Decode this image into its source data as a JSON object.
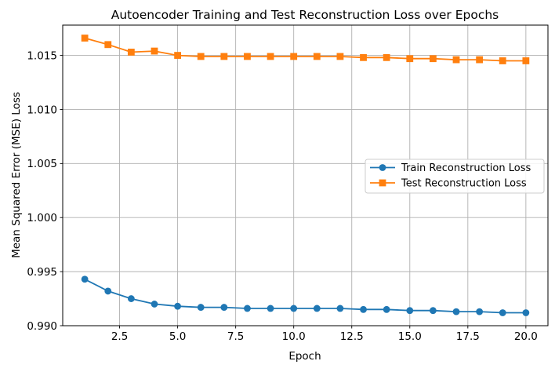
{
  "chart_data": {
    "type": "line",
    "title": "Autoencoder Training and Test Reconstruction Loss over Epochs",
    "xlabel": "Epoch",
    "ylabel": "Mean Squared Error (MSE) Loss",
    "x": [
      1,
      2,
      3,
      4,
      5,
      6,
      7,
      8,
      9,
      10,
      11,
      12,
      13,
      14,
      15,
      16,
      17,
      18,
      19,
      20
    ],
    "series": [
      {
        "name": "Train Reconstruction Loss",
        "color": "#1f77b4",
        "marker": "circle",
        "values": [
          0.9943,
          0.9932,
          0.9925,
          0.992,
          0.9918,
          0.9917,
          0.9917,
          0.9916,
          0.9916,
          0.9916,
          0.9916,
          0.9916,
          0.9915,
          0.9915,
          0.9914,
          0.9914,
          0.9913,
          0.9913,
          0.9912,
          0.9912
        ]
      },
      {
        "name": "Test Reconstruction Loss",
        "color": "#ff7f0e",
        "marker": "square",
        "values": [
          1.0166,
          1.016,
          1.0153,
          1.0154,
          1.015,
          1.0149,
          1.0149,
          1.0149,
          1.0149,
          1.0149,
          1.0149,
          1.0149,
          1.0148,
          1.0148,
          1.0147,
          1.0147,
          1.0146,
          1.0146,
          1.0145,
          1.0145
        ]
      }
    ],
    "xlim": [
      0.05,
      20.95
    ],
    "ylim": [
      0.99,
      1.0178
    ],
    "xticks": {
      "values": [
        2.5,
        5.0,
        7.5,
        10.0,
        12.5,
        15.0,
        17.5,
        20.0
      ],
      "labels": [
        "2.5",
        "5.0",
        "7.5",
        "10.0",
        "12.5",
        "15.0",
        "17.5",
        "20.0"
      ]
    },
    "yticks": {
      "values": [
        0.99,
        0.995,
        1.0,
        1.005,
        1.01,
        1.015
      ],
      "labels": [
        "0.990",
        "0.995",
        "1.000",
        "1.005",
        "1.010",
        "1.015"
      ]
    },
    "grid": true,
    "legend": {
      "position": "center-right",
      "entries": [
        "Train Reconstruction Loss",
        "Test Reconstruction Loss"
      ]
    }
  },
  "style": {
    "background": "#ffffff",
    "grid_color": "#b0b0b0",
    "spine_color": "#000000",
    "text_color": "#000000",
    "legend_background": "#ffffff",
    "legend_border_color": "#cccccc"
  }
}
